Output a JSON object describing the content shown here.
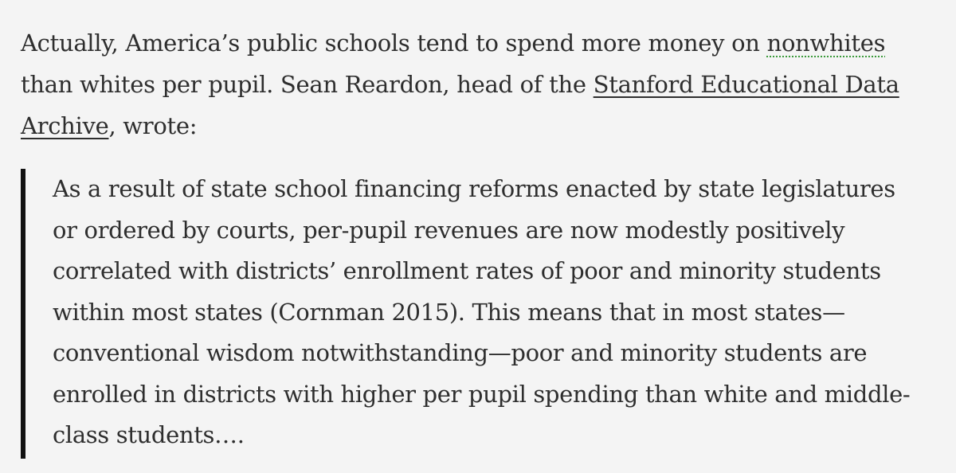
{
  "paragraph": {
    "line1_pre": "Actually, America’s public schools tend to spend more money on ",
    "line1_link": "nonwhites",
    "line2_pre": "than whites per pupil. Sean Reardon, head of the ",
    "line2_link": "Stanford Educational Data",
    "line3_link": "Archive",
    "line3_post": ", wrote:"
  },
  "blockquote": {
    "lines": [
      "As a result of state school financing reforms enacted by state legislatures",
      "or ordered by courts, per-pupil revenues are now modestly positively",
      "correlated with districts’ enrollment rates of poor and minority students",
      "within most states (Cornman 2015). This means that in most states—",
      "conventional wisdom notwithstanding—poor and minority students are",
      "enrolled in districts with higher per pupil spending than white and middle-",
      "class students…."
    ]
  }
}
